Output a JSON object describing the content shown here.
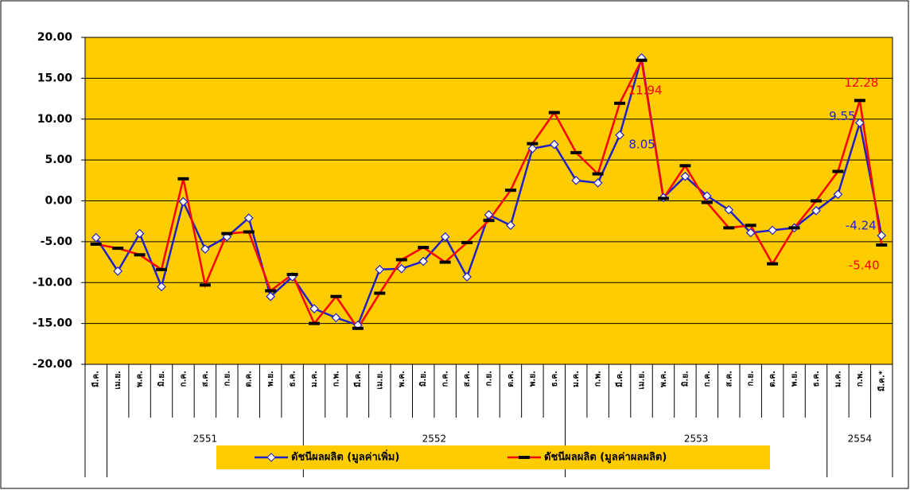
{
  "chart_data": {
    "type": "line",
    "categories": [
      "มี.ค.",
      "เม.ย.",
      "พ.ค.",
      "มิ.ย.",
      "ก.ค.",
      "ส.ค.",
      "ก.ย.",
      "ต.ค.",
      "พ.ย.",
      "ธ.ค.",
      "ม.ค.",
      "ก.พ.",
      "มี.ค.",
      "เม.ย.",
      "พ.ค.",
      "มิ.ย.",
      "ก.ค.",
      "ส.ค.",
      "ก.ย.",
      "ต.ค.",
      "พ.ย.",
      "ธ.ค.",
      "ม.ค.",
      "ก.พ.",
      "มี.ค.",
      "เม.ย.",
      "พ.ค.",
      "มิ.ย.",
      "ก.ค.",
      "ส.ค.",
      "ก.ย.",
      "ต.ค.",
      "พ.ย.",
      "ธ.ค.",
      "ม.ค.",
      "ก.พ.",
      "มี.ค.*"
    ],
    "years": [
      "2551",
      "2552",
      "2553",
      "2554"
    ],
    "series": [
      {
        "name": "ดัชนีผลผลิต (มูลค่าเพิ่ม)",
        "color": "#2020c8",
        "marker": "diamond",
        "values": [
          -4.5,
          -8.6,
          -4.0,
          -10.5,
          -0.1,
          -5.9,
          -4.4,
          -2.1,
          -11.7,
          -9.3,
          -13.2,
          -14.3,
          -15.2,
          -8.4,
          -8.3,
          -7.4,
          -4.4,
          -9.3,
          -1.7,
          -3.0,
          6.4,
          6.9,
          2.5,
          2.2,
          8.05,
          17.5,
          0.4,
          3.0,
          0.6,
          -1.1,
          -3.9,
          -3.6,
          -3.3,
          -1.2,
          0.8,
          9.55,
          -4.24
        ],
        "value_labels": [
          null,
          null,
          null,
          null,
          null,
          null,
          null,
          null,
          null,
          null,
          null,
          null,
          null,
          null,
          null,
          null,
          null,
          null,
          null,
          null,
          null,
          null,
          null,
          null,
          "8.05",
          null,
          null,
          null,
          null,
          null,
          null,
          null,
          null,
          null,
          null,
          "9.55",
          "-4.24"
        ]
      },
      {
        "name": "ดัชนีผลผลิต (มูลค่าผลผลิต)",
        "color": "#ff0000",
        "marker": "dash",
        "values": [
          -5.3,
          -5.8,
          -6.6,
          -8.4,
          2.7,
          -10.3,
          -4.0,
          -3.8,
          -11.0,
          -9.0,
          -15.0,
          -11.7,
          -15.6,
          -11.3,
          -7.2,
          -5.7,
          -7.5,
          -5.1,
          -2.4,
          1.3,
          7.0,
          10.8,
          5.9,
          3.3,
          11.94,
          17.2,
          0.3,
          4.3,
          -0.2,
          -3.3,
          -3.0,
          -7.7,
          -3.3,
          0.0,
          3.6,
          12.28,
          -5.4
        ],
        "value_labels": [
          null,
          null,
          null,
          null,
          null,
          null,
          null,
          null,
          null,
          null,
          null,
          null,
          null,
          null,
          null,
          null,
          null,
          null,
          null,
          null,
          null,
          null,
          null,
          null,
          "11.94",
          null,
          null,
          null,
          null,
          null,
          null,
          null,
          null,
          null,
          null,
          "12.28",
          "-5.40"
        ]
      }
    ],
    "ylim": [
      -20,
      20
    ],
    "yticks": [
      {
        "value": -20,
        "label": "-20.00"
      },
      {
        "value": -15,
        "label": "-15.00"
      },
      {
        "value": -10,
        "label": "-10.00"
      },
      {
        "value": -5,
        "label": "-5.00"
      },
      {
        "value": 0,
        "label": "0.00"
      },
      {
        "value": 5,
        "label": "5.00"
      },
      {
        "value": 10,
        "label": "10.00"
      },
      {
        "value": 15,
        "label": "15.00"
      },
      {
        "value": 20,
        "label": "20.00"
      }
    ],
    "grid": true,
    "background": "#ffcc00",
    "legend": "bottom"
  }
}
